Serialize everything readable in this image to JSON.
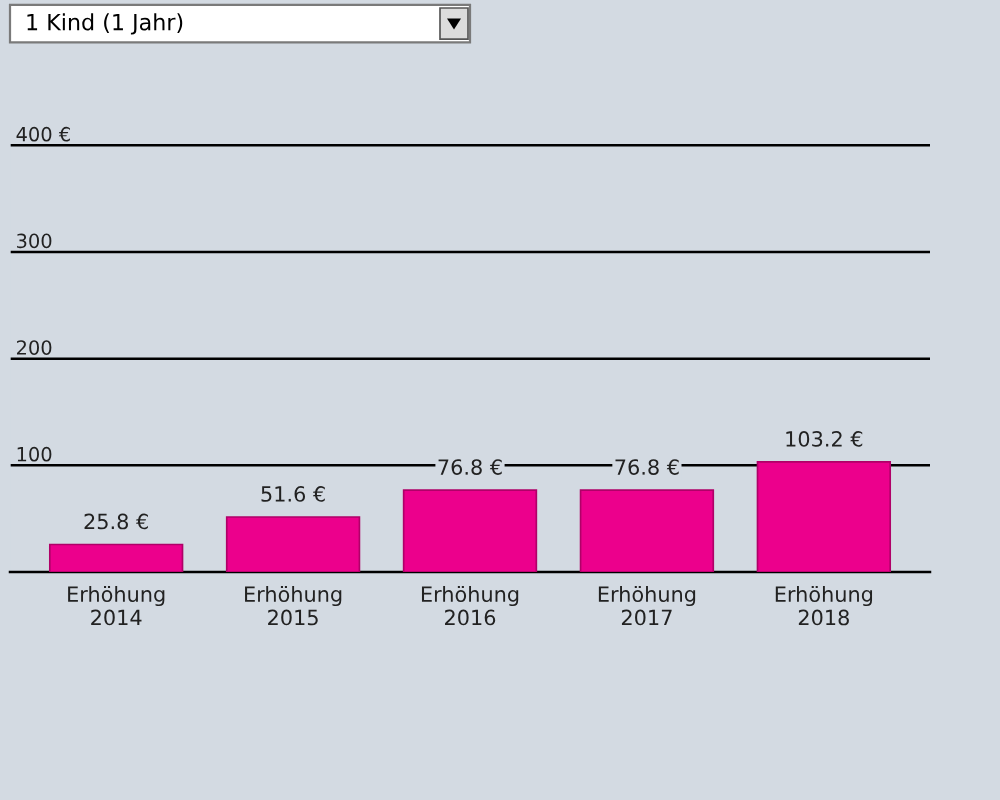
{
  "chart_data": {
    "type": "bar",
    "title": "1 Kind (1 Jahr)",
    "categories": [
      "Erhöhung\n2014",
      "Erhöhung\n2015",
      "Erhöhung\n2016",
      "Erhöhung\n2017",
      "Erhöhung\n2018"
    ],
    "values": [
      25.8,
      51.6,
      76.8,
      76.8,
      103.2
    ],
    "value_labels": [
      "25.8 €",
      "51.6 €",
      "76.8 €",
      "76.8 €",
      "103.2 €"
    ],
    "color": "#ec008c",
    "ylim": [
      0,
      420
    ],
    "yticks": [
      {
        "value": 100,
        "label": "100"
      },
      {
        "value": 200,
        "label": "200"
      },
      {
        "value": 300,
        "label": "300"
      },
      {
        "value": 400,
        "label": "400 €"
      }
    ],
    "grid": "y"
  }
}
